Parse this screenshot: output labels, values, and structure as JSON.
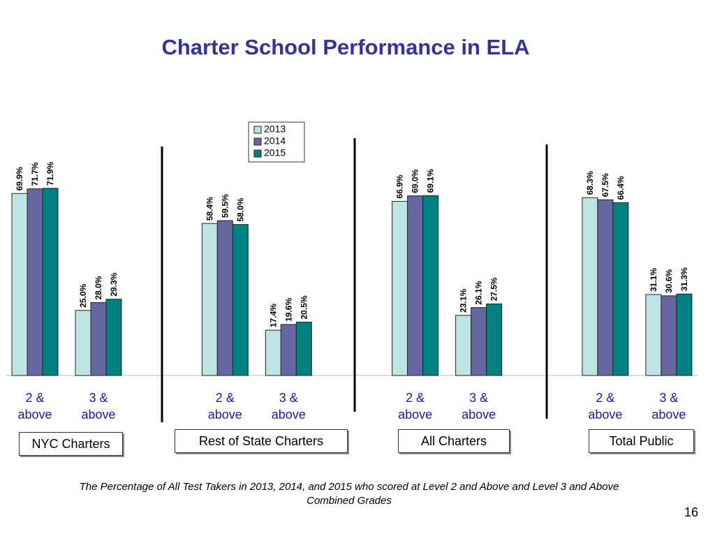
{
  "chart_data": {
    "type": "bar",
    "title": "Charter School Performance in ELA",
    "categories": [
      "2 & above",
      "3 & above",
      "2 & above",
      "3 & above",
      "2 & above",
      "3 & above",
      "2 & above",
      "3 & above"
    ],
    "group_labels": [
      "NYC Charters",
      "Rest of State Charters",
      "All Charters",
      "Total Public"
    ],
    "series": [
      {
        "name": "2013",
        "color": "#bfe4e4",
        "values": [
          69.9,
          25.0,
          58.4,
          17.4,
          66.9,
          23.1,
          68.3,
          31.1
        ],
        "value_labels": [
          "69.9%",
          "25.0%",
          "58.4%",
          "17.4%",
          "66.9%",
          "23.1%",
          "68.3%",
          "31.1%"
        ]
      },
      {
        "name": "2014",
        "color": "#6666a0",
        "values": [
          71.7,
          28.0,
          59.5,
          19.6,
          69.0,
          26.1,
          67.5,
          30.6
        ],
        "value_labels": [
          "71.7%",
          "28.0%",
          "59.5%",
          "19.6%",
          "69.0%",
          "26.1%",
          "67.5%",
          "30.6%"
        ]
      },
      {
        "name": "2015",
        "color": "#008080",
        "values": [
          71.9,
          29.3,
          58.0,
          20.5,
          69.1,
          27.5,
          66.4,
          31.3
        ],
        "value_labels": [
          "71.9%",
          "29.3%",
          "58.0%",
          "20.5%",
          "69.1%",
          "27.5%",
          "66.4%",
          "31.3%"
        ]
      }
    ],
    "caption": "The Percentage of All Test Takers in 2013, 2014, and 2015 who scored at Level 2 and Above and Level 3 and Above Combined Grades"
  },
  "page_number": "16"
}
